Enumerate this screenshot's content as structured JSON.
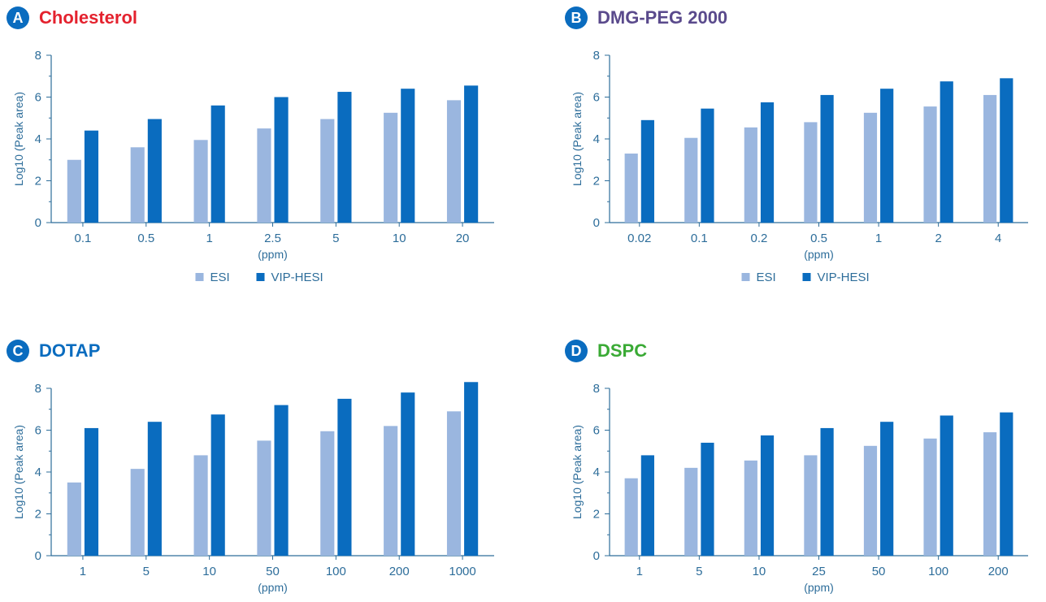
{
  "colors": {
    "esi": "#9ab6df",
    "vip_hesi": "#0a6cbf",
    "axis": "#2d6d9a",
    "badge": "#0a6cbf"
  },
  "legend": {
    "esi": "ESI",
    "vip_hesi": "VIP-HESI"
  },
  "chart_data": [
    {
      "type": "bar",
      "panel_letter": "A",
      "title": "Cholesterol",
      "title_color": "#e4222e",
      "xlabel": "(ppm)",
      "ylabel": "Log10 (Peak area)",
      "ylim": [
        0,
        8
      ],
      "yticks": [
        "0",
        "2",
        "4",
        "6",
        "8"
      ],
      "categories": [
        "0.1",
        "0.5",
        "1",
        "2.5",
        "5",
        "10",
        "20"
      ],
      "series": [
        {
          "name": "ESI",
          "values": [
            3.0,
            3.6,
            3.95,
            4.5,
            4.95,
            5.25,
            5.85
          ]
        },
        {
          "name": "VIP-HESI",
          "values": [
            4.4,
            4.95,
            5.6,
            6.0,
            6.25,
            6.4,
            6.55
          ]
        }
      ],
      "legend_shown": true
    },
    {
      "type": "bar",
      "panel_letter": "B",
      "title": "DMG-PEG 2000",
      "title_color": "#5a4a8c",
      "xlabel": "(ppm)",
      "ylabel": "Log10 (Peak area)",
      "ylim": [
        0,
        8
      ],
      "yticks": [
        "0",
        "2",
        "4",
        "6",
        "8"
      ],
      "categories": [
        "0.02",
        "0.1",
        "0.2",
        "0.5",
        "1",
        "2",
        "4"
      ],
      "series": [
        {
          "name": "ESI",
          "values": [
            3.3,
            4.05,
            4.55,
            4.8,
            5.25,
            5.55,
            6.1
          ]
        },
        {
          "name": "VIP-HESI",
          "values": [
            4.9,
            5.45,
            5.75,
            6.1,
            6.4,
            6.75,
            6.9
          ]
        }
      ],
      "legend_shown": true
    },
    {
      "type": "bar",
      "panel_letter": "C",
      "title": "DOTAP",
      "title_color": "#0a6cbf",
      "xlabel": "(ppm)",
      "ylabel": "Log10 (Peak area)",
      "ylim": [
        0,
        8
      ],
      "yticks": [
        "0",
        "2",
        "4",
        "6",
        "8"
      ],
      "categories": [
        "1",
        "5",
        "10",
        "50",
        "100",
        "200",
        "1000"
      ],
      "series": [
        {
          "name": "ESI",
          "values": [
            3.5,
            4.15,
            4.8,
            5.5,
            5.95,
            6.2,
            6.9
          ]
        },
        {
          "name": "VIP-HESI",
          "values": [
            6.1,
            6.4,
            6.75,
            7.2,
            7.5,
            7.8,
            8.3
          ]
        }
      ],
      "legend_shown": false
    },
    {
      "type": "bar",
      "panel_letter": "D",
      "title": "DSPC",
      "title_color": "#3aaa35",
      "xlabel": "(ppm)",
      "ylabel": "Log10 (Peak area)",
      "ylim": [
        0,
        8
      ],
      "yticks": [
        "0",
        "2",
        "4",
        "6",
        "8"
      ],
      "categories": [
        "1",
        "5",
        "10",
        "25",
        "50",
        "100",
        "200"
      ],
      "series": [
        {
          "name": "ESI",
          "values": [
            3.7,
            4.2,
            4.55,
            4.8,
            5.25,
            5.6,
            5.9
          ]
        },
        {
          "name": "VIP-HESI",
          "values": [
            4.8,
            5.4,
            5.75,
            6.1,
            6.4,
            6.7,
            6.85
          ]
        }
      ],
      "legend_shown": false
    }
  ]
}
